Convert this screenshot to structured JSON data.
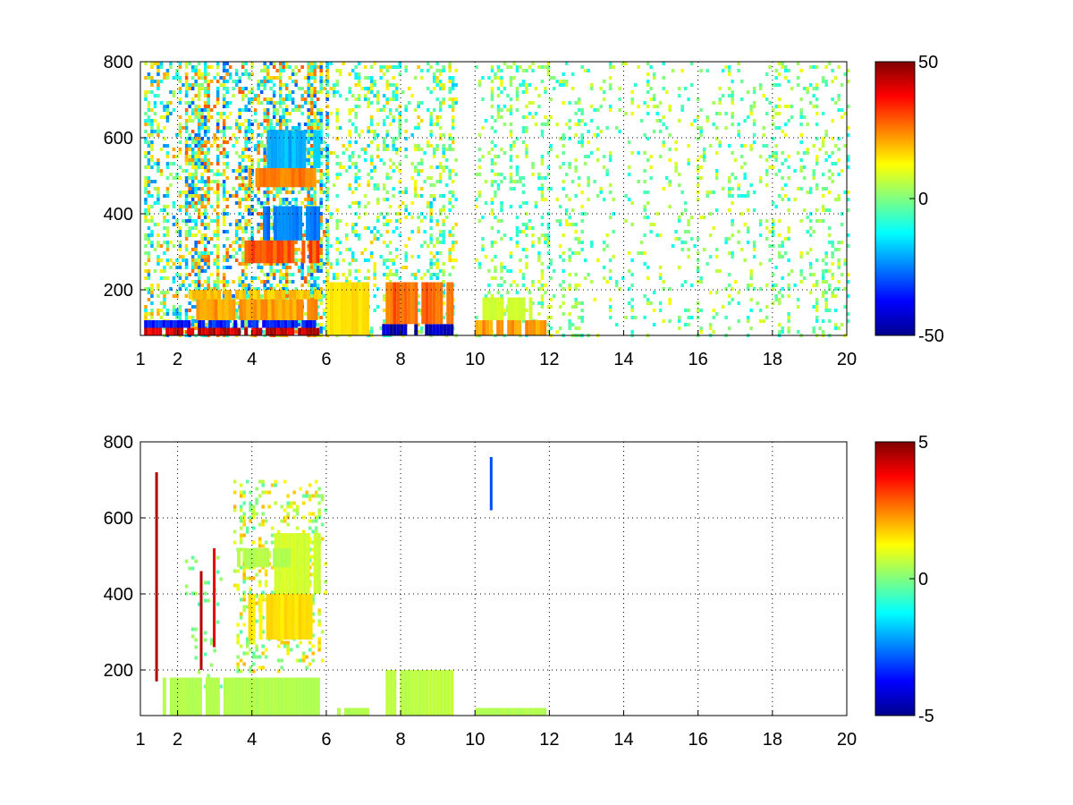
{
  "chart_data": [
    {
      "type": "heatmap",
      "title": "",
      "xlabel": "",
      "ylabel": "",
      "xlim": [
        1,
        20
      ],
      "ylim": [
        80,
        800
      ],
      "x_ticks": [
        1,
        2,
        4,
        6,
        8,
        10,
        12,
        14,
        16,
        18,
        20
      ],
      "y_ticks": [
        200,
        400,
        600,
        800
      ],
      "grid": true,
      "colormap": "jet",
      "colorbar": {
        "range": [
          -50,
          50
        ],
        "ticks": [
          50,
          0,
          -50
        ]
      },
      "bands": [
        {
          "x": [
            1.1,
            5.8
          ],
          "y": [
            80,
            100
          ],
          "level": 42
        },
        {
          "x": [
            1.1,
            5.8
          ],
          "y": [
            100,
            120
          ],
          "level": -35
        },
        {
          "x": [
            2.5,
            5.8
          ],
          "y": [
            120,
            175
          ],
          "level": 22
        },
        {
          "x": [
            2.3,
            5.8
          ],
          "y": [
            175,
            200
          ],
          "level": 18
        },
        {
          "x": [
            3.8,
            5.8
          ],
          "y": [
            270,
            330
          ],
          "level": 30
        },
        {
          "x": [
            4.2,
            5.8
          ],
          "y": [
            330,
            420
          ],
          "level": -25
        },
        {
          "x": [
            3.9,
            5.7
          ],
          "y": [
            470,
            520
          ],
          "level": 25
        },
        {
          "x": [
            4.4,
            5.8
          ],
          "y": [
            520,
            620
          ],
          "level": -20
        },
        {
          "x": [
            6.0,
            7.1
          ],
          "y": [
            80,
            220
          ],
          "level": 15
        },
        {
          "x": [
            7.5,
            9.4
          ],
          "y": [
            80,
            110
          ],
          "level": -45
        },
        {
          "x": [
            7.5,
            9.4
          ],
          "y": [
            110,
            220
          ],
          "level": 28
        },
        {
          "x": [
            10.0,
            11.9
          ],
          "y": [
            80,
            120
          ],
          "level": 22
        },
        {
          "x": [
            10.2,
            11.5
          ],
          "y": [
            120,
            180
          ],
          "level": 8
        }
      ],
      "speckle": [
        {
          "x": [
            1.1,
            2.2
          ],
          "y": [
            80,
            800
          ],
          "range": [
            -25,
            25
          ],
          "density": 0.4
        },
        {
          "x": [
            2.2,
            6.0
          ],
          "y": [
            80,
            800
          ],
          "range": [
            -30,
            30
          ],
          "density": 0.5
        },
        {
          "x": [
            6.0,
            9.5
          ],
          "y": [
            80,
            800
          ],
          "range": [
            -18,
            18
          ],
          "density": 0.25
        },
        {
          "x": [
            10.0,
            12.0
          ],
          "y": [
            80,
            800
          ],
          "range": [
            -12,
            12
          ],
          "density": 0.2
        },
        {
          "x": [
            12.0,
            20.0
          ],
          "y": [
            80,
            800
          ],
          "range": [
            -12,
            12
          ],
          "density": 0.16
        }
      ]
    },
    {
      "type": "heatmap",
      "title": "",
      "xlabel": "",
      "ylabel": "",
      "xlim": [
        1,
        20
      ],
      "ylim": [
        80,
        800
      ],
      "x_ticks": [
        1,
        2,
        4,
        6,
        8,
        10,
        12,
        14,
        16,
        18,
        20
      ],
      "y_ticks": [
        200,
        400,
        600,
        800
      ],
      "grid": true,
      "colormap": "jet",
      "colorbar": {
        "range": [
          -5,
          5
        ],
        "ticks": [
          5,
          0,
          -5
        ]
      },
      "bands": [
        {
          "x": [
            1.6,
            5.8
          ],
          "y": [
            80,
            180
          ],
          "level": 0.5
        },
        {
          "x": [
            6.0,
            7.1
          ],
          "y": [
            80,
            100
          ],
          "level": 0.5
        },
        {
          "x": [
            7.5,
            9.4
          ],
          "y": [
            80,
            200
          ],
          "level": 0.6
        },
        {
          "x": [
            10.0,
            11.9
          ],
          "y": [
            80,
            100
          ],
          "level": 0.5
        },
        {
          "x": [
            3.9,
            5.6
          ],
          "y": [
            280,
            400
          ],
          "level": 1.5
        },
        {
          "x": [
            4.6,
            5.8
          ],
          "y": [
            400,
            560
          ],
          "level": 0.8
        },
        {
          "x": [
            3.6,
            5.0
          ],
          "y": [
            470,
            520
          ],
          "level": 0.5
        }
      ],
      "speckle": [
        {
          "x": [
            3.5,
            6.0
          ],
          "y": [
            200,
            700
          ],
          "range": [
            -0.5,
            2.0
          ],
          "density": 0.25
        },
        {
          "x": [
            2.2,
            3.2
          ],
          "y": [
            120,
            500
          ],
          "range": [
            -0.5,
            0.5
          ],
          "density": 0.1
        }
      ],
      "strips": [
        {
          "x": 1.4,
          "y": [
            170,
            720
          ],
          "level": 4.5
        },
        {
          "x": 2.6,
          "y": [
            200,
            460
          ],
          "level": 4.5
        },
        {
          "x": 2.95,
          "y": [
            260,
            520
          ],
          "level": 4
        },
        {
          "x": 10.4,
          "y": [
            620,
            760
          ],
          "level": -3
        }
      ]
    }
  ]
}
